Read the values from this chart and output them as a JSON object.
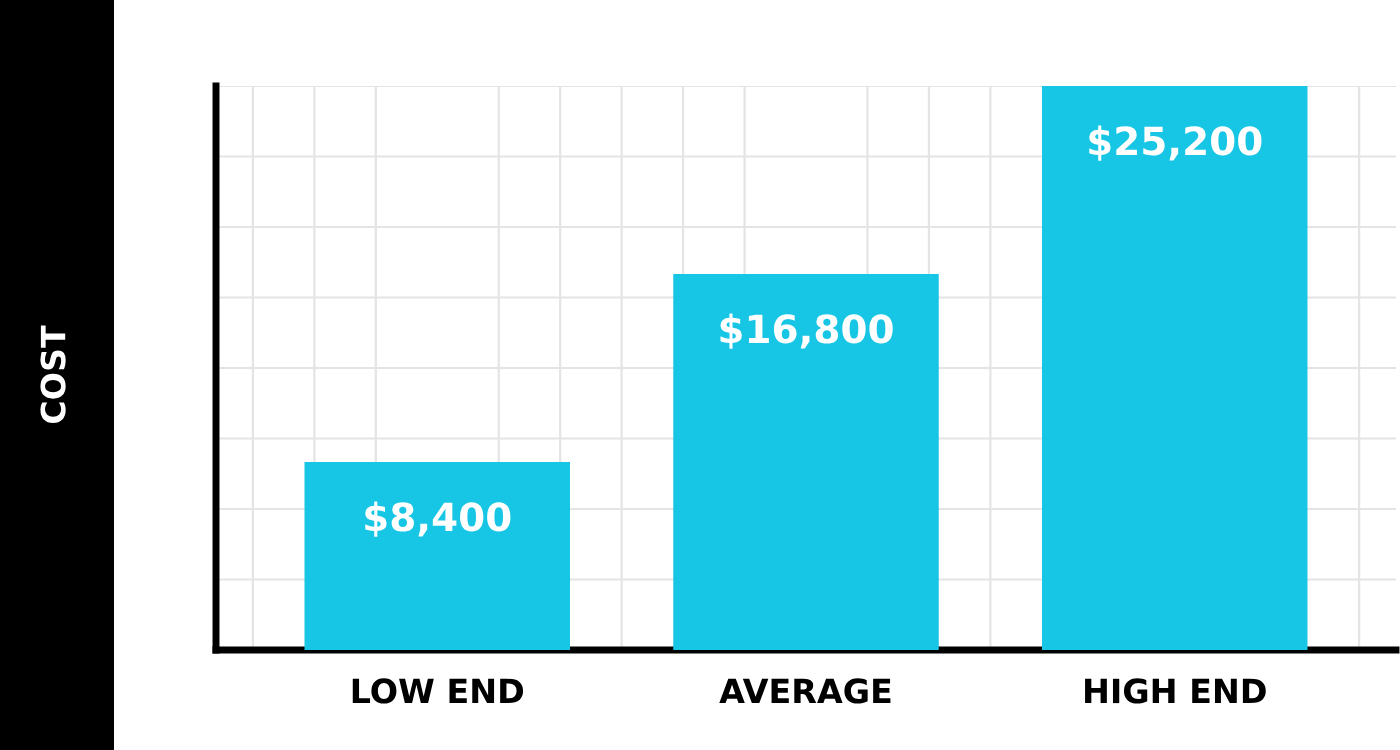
{
  "chart_data": {
    "type": "bar",
    "ylabel": "COST",
    "categories": [
      "LOW END",
      "AVERAGE",
      "HIGH END"
    ],
    "values": [
      8400,
      16800,
      25200
    ],
    "value_labels": [
      "$8,400",
      "$16,800",
      "$25,200"
    ],
    "color": "#17c6e4",
    "ylim": [
      0,
      25200
    ],
    "yticks": [
      {
        "value": 0,
        "label": null
      },
      {
        "value": 3150,
        "label": null
      },
      {
        "value": 6300,
        "label": null
      },
      {
        "value": 9450,
        "label": null
      },
      {
        "value": 12600,
        "label": null
      },
      {
        "value": 15750,
        "label": null
      },
      {
        "value": 18900,
        "label": null
      },
      {
        "value": 22050,
        "label": null
      },
      {
        "value": 25200,
        "label": null
      }
    ],
    "grid": true
  }
}
